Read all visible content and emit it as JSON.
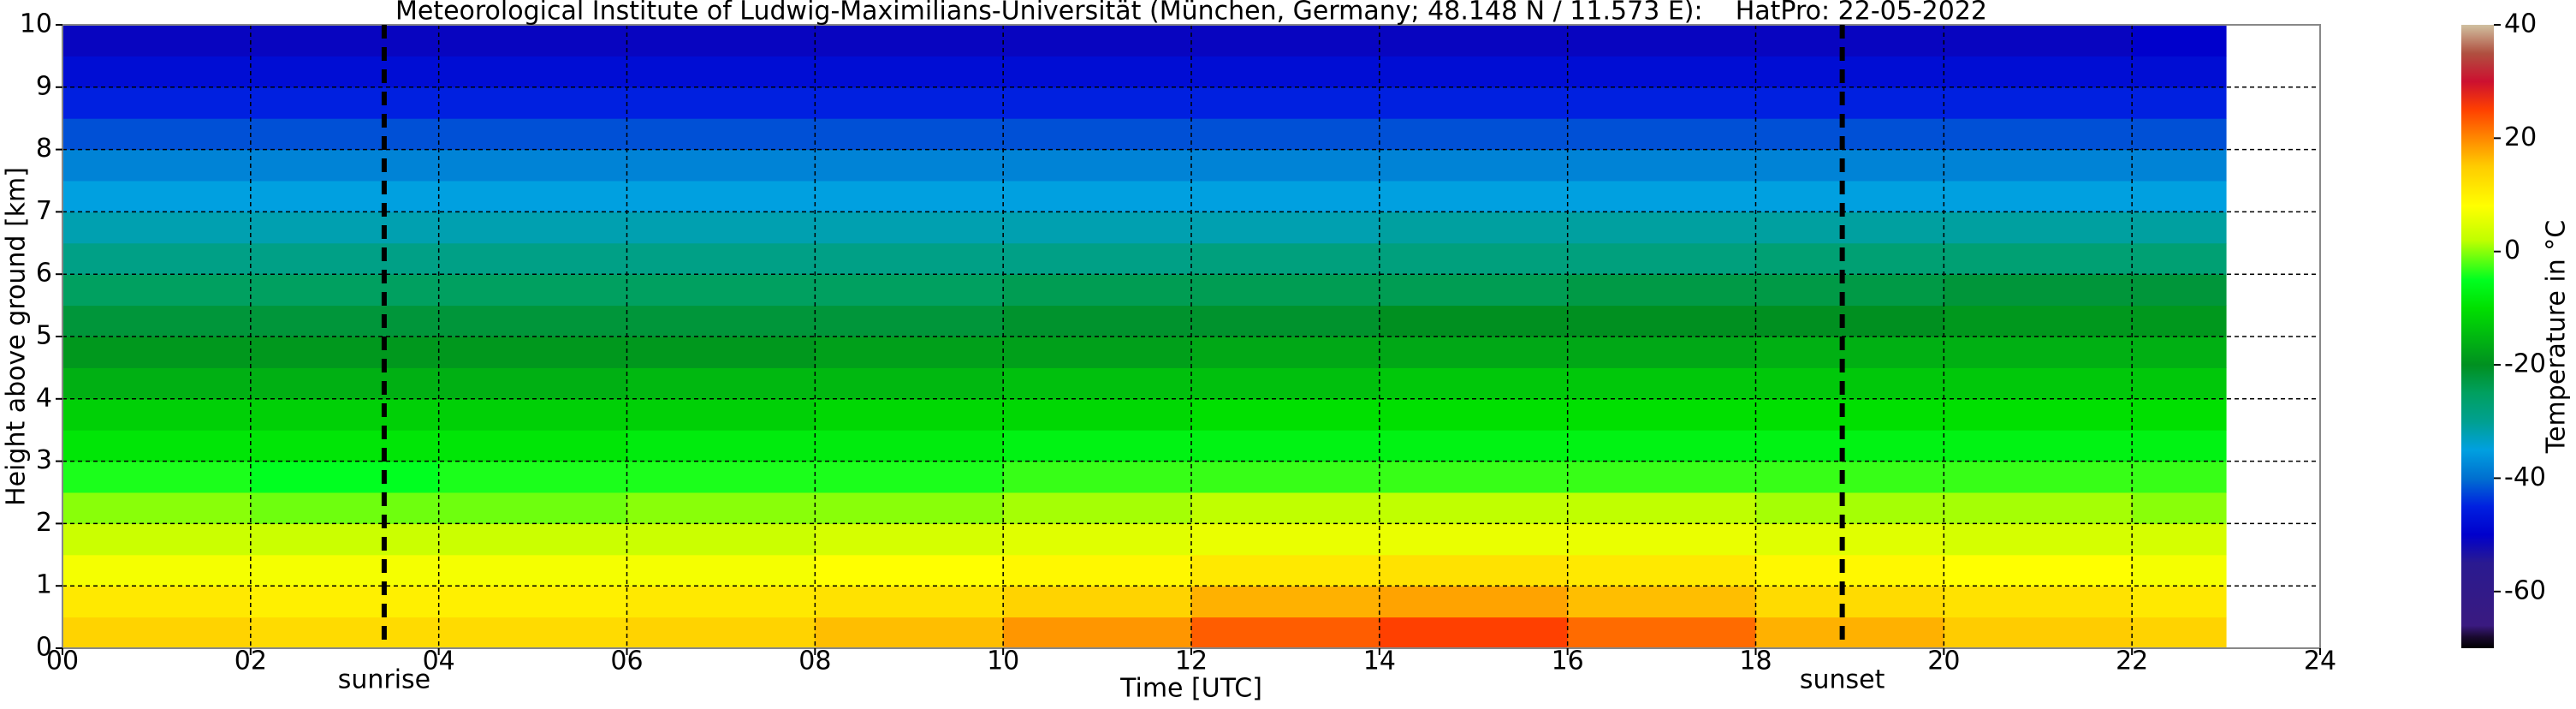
{
  "chart_data": {
    "type": "heatmap",
    "title": "Meteorological Institute of Ludwig-Maximilians-Universität (München, Germany; 48.148 N / 11.573 E):    HatPro: 22-05-2022",
    "x_label": "Time [UTC]",
    "y_label": "Height above ground [km]",
    "colorbar_label": "Temperature in $^\\circ$C",
    "xlim": [
      0,
      24
    ],
    "ylim": [
      0,
      10
    ],
    "xticks": [
      {
        "value": 0,
        "label": "00"
      },
      {
        "value": 2,
        "label": "02"
      },
      {
        "value": 4,
        "label": "04"
      },
      {
        "value": 6,
        "label": "06"
      },
      {
        "value": 8,
        "label": "08"
      },
      10,
      12,
      14,
      16,
      18,
      20,
      22,
      24
    ],
    "yticks": [
      0,
      1,
      2,
      3,
      4,
      5,
      6,
      7,
      8,
      9,
      10
    ],
    "grid": true,
    "x_edges": [
      0,
      2,
      4,
      6,
      8,
      10,
      12,
      14,
      16,
      18,
      20,
      22,
      23
    ],
    "y_edges": [
      0,
      0.5,
      1,
      1.5,
      2,
      2.5,
      3,
      3.5,
      4,
      4.5,
      5,
      5.5,
      6,
      6.5,
      7,
      7.5,
      8,
      8.5,
      9,
      9.5,
      10
    ],
    "z": [
      [
        14,
        13,
        13,
        14,
        16,
        19,
        23,
        25,
        22,
        17,
        15,
        14
      ],
      [
        11,
        10,
        10,
        11,
        12,
        14,
        17,
        18,
        16,
        13,
        12,
        11
      ],
      [
        7,
        7,
        7,
        7,
        8,
        9,
        11,
        12,
        11,
        9,
        8,
        7
      ],
      [
        3,
        3,
        3,
        3,
        4,
        5,
        6,
        6,
        6,
        5,
        4,
        4
      ],
      [
        0,
        -1,
        -1,
        0,
        0,
        1,
        2,
        2,
        2,
        1,
        1,
        0
      ],
      [
        -4,
        -5,
        -4,
        -4,
        -4,
        -3,
        -3,
        -3,
        -3,
        -3,
        -3,
        -3
      ],
      [
        -9,
        -9,
        -9,
        -8,
        -8,
        -7,
        -7,
        -7,
        -7,
        -7,
        -7,
        -7
      ],
      [
        -12,
        -12,
        -12,
        -12,
        -11,
        -11,
        -10,
        -10,
        -10,
        -10,
        -10,
        -10
      ],
      [
        -16,
        -16,
        -16,
        -15,
        -15,
        -14,
        -14,
        -13,
        -13,
        -13,
        -13,
        -13
      ],
      [
        -19,
        -19,
        -19,
        -19,
        -18,
        -18,
        -17,
        -17,
        -17,
        -16,
        -16,
        -16
      ],
      [
        -22,
        -22,
        -22,
        -22,
        -22,
        -21,
        -21,
        -20,
        -20,
        -20,
        -19,
        -19
      ],
      [
        -25,
        -25,
        -25,
        -25,
        -25,
        -24,
        -24,
        -24,
        -23,
        -23,
        -22,
        -22
      ],
      [
        -29,
        -29,
        -29,
        -29,
        -29,
        -29,
        -28,
        -28,
        -28,
        -27,
        -27,
        -27
      ],
      [
        -32,
        -32,
        -32,
        -32,
        -32,
        -32,
        -32,
        -31,
        -31,
        -31,
        -31,
        -31
      ],
      [
        -35,
        -35,
        -35,
        -35,
        -35,
        -35,
        -35,
        -35,
        -35,
        -35,
        -35,
        -35
      ],
      [
        -38,
        -38,
        -38,
        -38,
        -38,
        -38,
        -38,
        -38,
        -38,
        -38,
        -38,
        -38
      ],
      [
        -42,
        -42,
        -42,
        -42,
        -42,
        -42,
        -42,
        -42,
        -42,
        -42,
        -42,
        -42
      ],
      [
        -45,
        -45,
        -45,
        -45,
        -45,
        -45,
        -45,
        -45,
        -45,
        -45,
        -45,
        -45
      ],
      [
        -48,
        -48,
        -48,
        -48,
        -48,
        -48,
        -48,
        -48,
        -48,
        -48,
        -48,
        -48
      ],
      [
        -51,
        -51,
        -51,
        -51,
        -51,
        -51,
        -51,
        -51,
        -51,
        -51,
        -51,
        -50
      ]
    ],
    "clim": [
      -70,
      40
    ],
    "cticks": [
      -60,
      -40,
      -20,
      0,
      20,
      40
    ],
    "colormap": [
      {
        "value": -70,
        "color": "#000000"
      },
      {
        "value": -68,
        "color": "#1a0a30"
      },
      {
        "value": -66,
        "color": "#3a1a80"
      },
      {
        "value": -55,
        "color": "#2a1a90"
      },
      {
        "value": -50,
        "color": "#0000cc"
      },
      {
        "value": -45,
        "color": "#0020e0"
      },
      {
        "value": -40,
        "color": "#0070d0"
      },
      {
        "value": -35,
        "color": "#00a0e0"
      },
      {
        "value": -30,
        "color": "#00a090"
      },
      {
        "value": -25,
        "color": "#00a060"
      },
      {
        "value": -20,
        "color": "#009020"
      },
      {
        "value": -10,
        "color": "#00e000"
      },
      {
        "value": -5,
        "color": "#00ff20"
      },
      {
        "value": 2,
        "color": "#c0ff00"
      },
      {
        "value": 8,
        "color": "#ffff00"
      },
      {
        "value": 15,
        "color": "#ffcc00"
      },
      {
        "value": 20,
        "color": "#ff8800"
      },
      {
        "value": 25,
        "color": "#ff4000"
      },
      {
        "value": 30,
        "color": "#cc1030"
      },
      {
        "value": 35,
        "color": "#b05040"
      },
      {
        "value": 40,
        "color": "#d0c0a0"
      }
    ],
    "vlines": [
      {
        "x": 3.42,
        "label": "sunrise"
      },
      {
        "x": 18.92,
        "label": "sunset"
      }
    ]
  }
}
